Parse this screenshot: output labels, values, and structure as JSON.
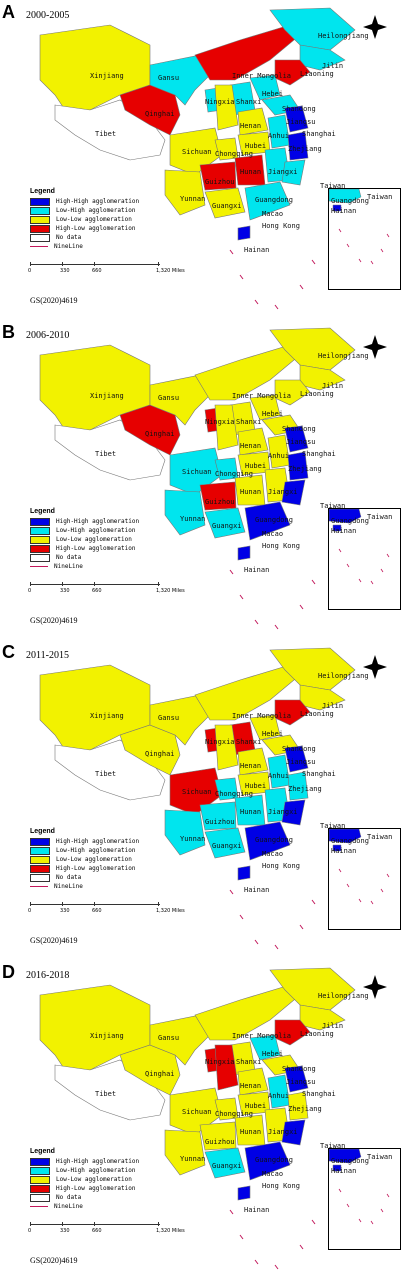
{
  "panels": [
    {
      "letter": "A",
      "period": "2000-2005",
      "colors": {
        "xinjiang": "ll",
        "tibet": "nd",
        "qinghai": "hl",
        "gansu": "lh",
        "imongolia": "hl",
        "heilong": "lh",
        "jilin": "lh",
        "liaoning": "hl",
        "hebei": "lh",
        "shandong": "lh",
        "shanxi": "lh",
        "ningxia": "lh",
        "shaanxi": "ll",
        "henan": "ll",
        "sichuan": "ll",
        "chongqing": "ll",
        "hubei": "ll",
        "hunan": "hl",
        "yunnan": "ll",
        "guizhou": "hl",
        "guangxi": "ll",
        "guangdong": "lh",
        "jiangxi": "lh",
        "anhui": "lh",
        "jiangsu": "hh",
        "zhejiang": "hh",
        "fujian": "lh",
        "hainan": "hh"
      }
    },
    {
      "letter": "B",
      "period": "2006-2010",
      "colors": {
        "xinjiang": "ll",
        "tibet": "nd",
        "qinghai": "hl",
        "gansu": "ll",
        "imongolia": "ll",
        "heilong": "ll",
        "jilin": "ll",
        "liaoning": "ll",
        "hebei": "ll",
        "shandong": "ll",
        "shanxi": "ll",
        "ningxia": "hl",
        "shaanxi": "ll",
        "henan": "ll",
        "sichuan": "lh",
        "chongqing": "lh",
        "hubei": "ll",
        "hunan": "ll",
        "yunnan": "lh",
        "guizhou": "hl",
        "guangxi": "lh",
        "guangdong": "hh",
        "jiangxi": "ll",
        "anhui": "ll",
        "jiangsu": "hh",
        "zhejiang": "hh",
        "fujian": "hh",
        "hainan": "hh"
      }
    },
    {
      "letter": "C",
      "period": "2011-2015",
      "colors": {
        "xinjiang": "ll",
        "tibet": "nd",
        "qinghai": "ll",
        "gansu": "ll",
        "imongolia": "ll",
        "heilong": "ll",
        "jilin": "ll",
        "liaoning": "hl",
        "hebei": "ll",
        "shandong": "ll",
        "shanxi": "hl",
        "ningxia": "hl",
        "shaanxi": "ll",
        "henan": "ll",
        "sichuan": "hl",
        "chongqing": "lh",
        "hubei": "ll",
        "hunan": "lh",
        "yunnan": "lh",
        "guizhou": "lh",
        "guangxi": "lh",
        "guangdong": "hh",
        "jiangxi": "lh",
        "anhui": "lh",
        "jiangsu": "hh",
        "zhejiang": "lh",
        "fujian": "hh",
        "hainan": "hh"
      }
    },
    {
      "letter": "D",
      "period": "2016-2018",
      "colors": {
        "xinjiang": "ll",
        "tibet": "nd",
        "qinghai": "ll",
        "gansu": "ll",
        "imongolia": "ll",
        "heilong": "ll",
        "jilin": "ll",
        "liaoning": "hl",
        "hebei": "lh",
        "shandong": "ll",
        "shanxi": "ll",
        "ningxia": "hl",
        "shaanxi": "hl",
        "henan": "ll",
        "sichuan": "ll",
        "chongqing": "ll",
        "hubei": "ll",
        "hunan": "ll",
        "yunnan": "ll",
        "guizhou": "ll",
        "guangxi": "lh",
        "guangdong": "hh",
        "jiangxi": "ll",
        "anhui": "lh",
        "jiangsu": "hh",
        "zhejiang": "ll",
        "fujian": "hh",
        "hainan": "hh"
      }
    }
  ],
  "legend": {
    "title": "Legend",
    "items": [
      {
        "key": "hh",
        "label": "High-High agglomeration",
        "color": "#0000e6"
      },
      {
        "key": "lh",
        "label": "Low-High agglomeration",
        "color": "#00e5ee"
      },
      {
        "key": "ll",
        "label": "Low-Low agglomeration",
        "color": "#f2f200"
      },
      {
        "key": "hl",
        "label": "High-Low agglomeration",
        "color": "#e60000"
      },
      {
        "key": "nd",
        "label": "No data",
        "color": "#ffffff"
      }
    ],
    "line_label": "NineLine"
  },
  "scale": {
    "ticks": [
      "0",
      "330",
      "660",
      "1,320 Miles"
    ]
  },
  "map_number": "GS(2020)4619",
  "province_names": {
    "xinjiang": "Xinjiang",
    "tibet": "Tibet",
    "qinghai": "Qinghai",
    "gansu": "Gansu",
    "imongolia": "Inner Mongolia",
    "heilong": "Heilongjiang",
    "jilin": "Jilin",
    "liaoning": "Liaoning",
    "hebei": "Hebei",
    "shandong": "Shandong",
    "shanxi": "Shanxi",
    "ningxia": "Ningxia",
    "shaanxi": "Shaanxi",
    "henan": "Henan",
    "sichuan": "Sichuan",
    "chongqing": "Chongqing",
    "hubei": "Hubei",
    "hunan": "Hunan",
    "yunnan": "Yunnan",
    "guizhou": "Guizhou",
    "guangxi": "Guangxi",
    "guangdong": "Guangdong",
    "jiangxi": "Jiangxi",
    "anhui": "Anhui",
    "jiangsu": "Jiangsu",
    "zhejiang": "Zhejiang",
    "fujian": "Fujian",
    "hainan": "Hainan",
    "shanghai": "Shanghai",
    "macao": "Macao",
    "hongkong": "Hong Kong",
    "taiwan": "Taiwan"
  }
}
